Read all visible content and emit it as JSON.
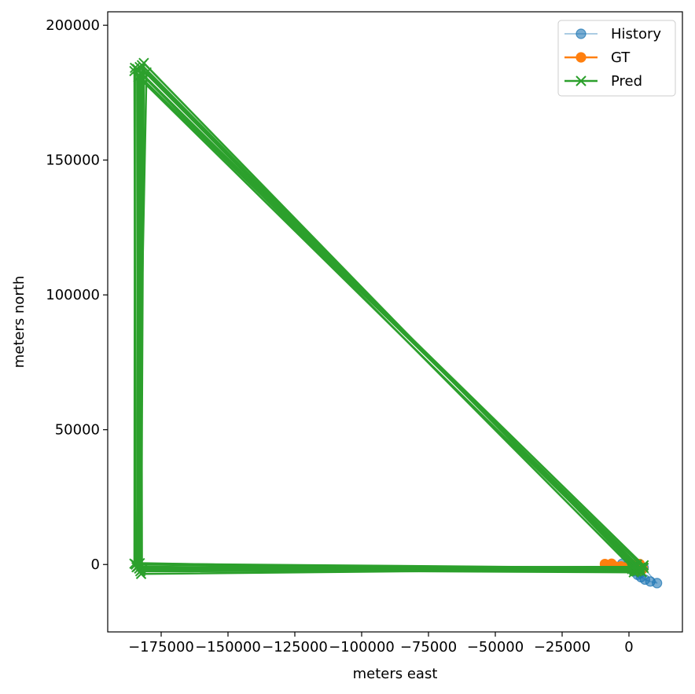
{
  "chart_data": {
    "type": "line",
    "title": "",
    "xlabel": "meters east",
    "ylabel": "meters north",
    "xlim": [
      -195000,
      20000
    ],
    "ylim": [
      -25000,
      205000
    ],
    "xticks": [
      -175000,
      -150000,
      -125000,
      -100000,
      -75000,
      -50000,
      -25000,
      0
    ],
    "xtick_labels": [
      "−175000",
      "−150000",
      "−125000",
      "−100000",
      "−75000",
      "−50000",
      "−25000",
      "0"
    ],
    "yticks": [
      0,
      50000,
      100000,
      150000,
      200000
    ],
    "ytick_labels": [
      "0",
      "50000",
      "100000",
      "150000",
      "200000"
    ],
    "grid": false,
    "legend_placement": "top-right",
    "series": [
      {
        "name": "History",
        "color": "#1f77b4",
        "marker": "circle",
        "points": [
          [
            -2500,
            300
          ],
          [
            -1000,
            -600
          ],
          [
            500,
            -1500
          ],
          [
            1800,
            -2500
          ],
          [
            3200,
            -3800
          ],
          [
            4500,
            -4700
          ],
          [
            6000,
            -5600
          ],
          [
            8000,
            -6300
          ],
          [
            10500,
            -6900
          ],
          [
            5500,
            -1200
          ],
          [
            4200,
            -3200
          ],
          [
            -1800,
            -900
          ]
        ]
      },
      {
        "name": "GT",
        "color": "#ff7f0e",
        "marker": "circle",
        "points": [
          [
            -9000,
            200
          ],
          [
            -6500,
            300
          ],
          [
            -5000,
            -800
          ],
          [
            -3000,
            -700
          ],
          [
            -1500,
            -1100
          ],
          [
            0,
            -600
          ],
          [
            2000,
            -200
          ],
          [
            4000,
            200
          ],
          [
            5200,
            -1600
          ],
          [
            3500,
            -2200
          ]
        ]
      },
      {
        "name": "Pred",
        "color": "#2ca02c",
        "marker": "x",
        "traces": [
          [
            [
              5000,
              -800
            ],
            [
              -185000,
              183000
            ],
            [
              -184500,
              0
            ],
            [
              4000,
              -1800
            ]
          ],
          [
            [
              4200,
              -1200
            ],
            [
              -184000,
              183800
            ],
            [
              -183800,
              -800
            ],
            [
              3500,
              -2300
            ]
          ],
          [
            [
              3500,
              -1500
            ],
            [
              -183000,
              184500
            ],
            [
              -183200,
              -1500
            ],
            [
              2800,
              -2600
            ]
          ],
          [
            [
              2500,
              -1000
            ],
            [
              -182200,
              185200
            ],
            [
              -182800,
              -2500
            ],
            [
              2000,
              -2100
            ]
          ],
          [
            [
              1500,
              -600
            ],
            [
              -181500,
              186000
            ],
            [
              -182500,
              -3500
            ],
            [
              1200,
              -1700
            ]
          ],
          [
            [
              3000,
              0
            ],
            [
              -180500,
              182500
            ],
            [
              -184200,
              -1000
            ],
            [
              5200,
              -900
            ]
          ],
          [
            [
              4500,
              -2500
            ],
            [
              -183500,
              180800
            ],
            [
              -183000,
              500
            ],
            [
              4800,
              -2800
            ]
          ],
          [
            [
              2000,
              -2000
            ],
            [
              -182500,
              182000
            ],
            [
              -182200,
              -2000
            ],
            [
              1800,
              -2900
            ]
          ],
          [
            [
              5500,
              -300
            ],
            [
              -184800,
              184200
            ],
            [
              -185000,
              300
            ],
            [
              5500,
              -1300
            ]
          ]
        ]
      }
    ]
  }
}
